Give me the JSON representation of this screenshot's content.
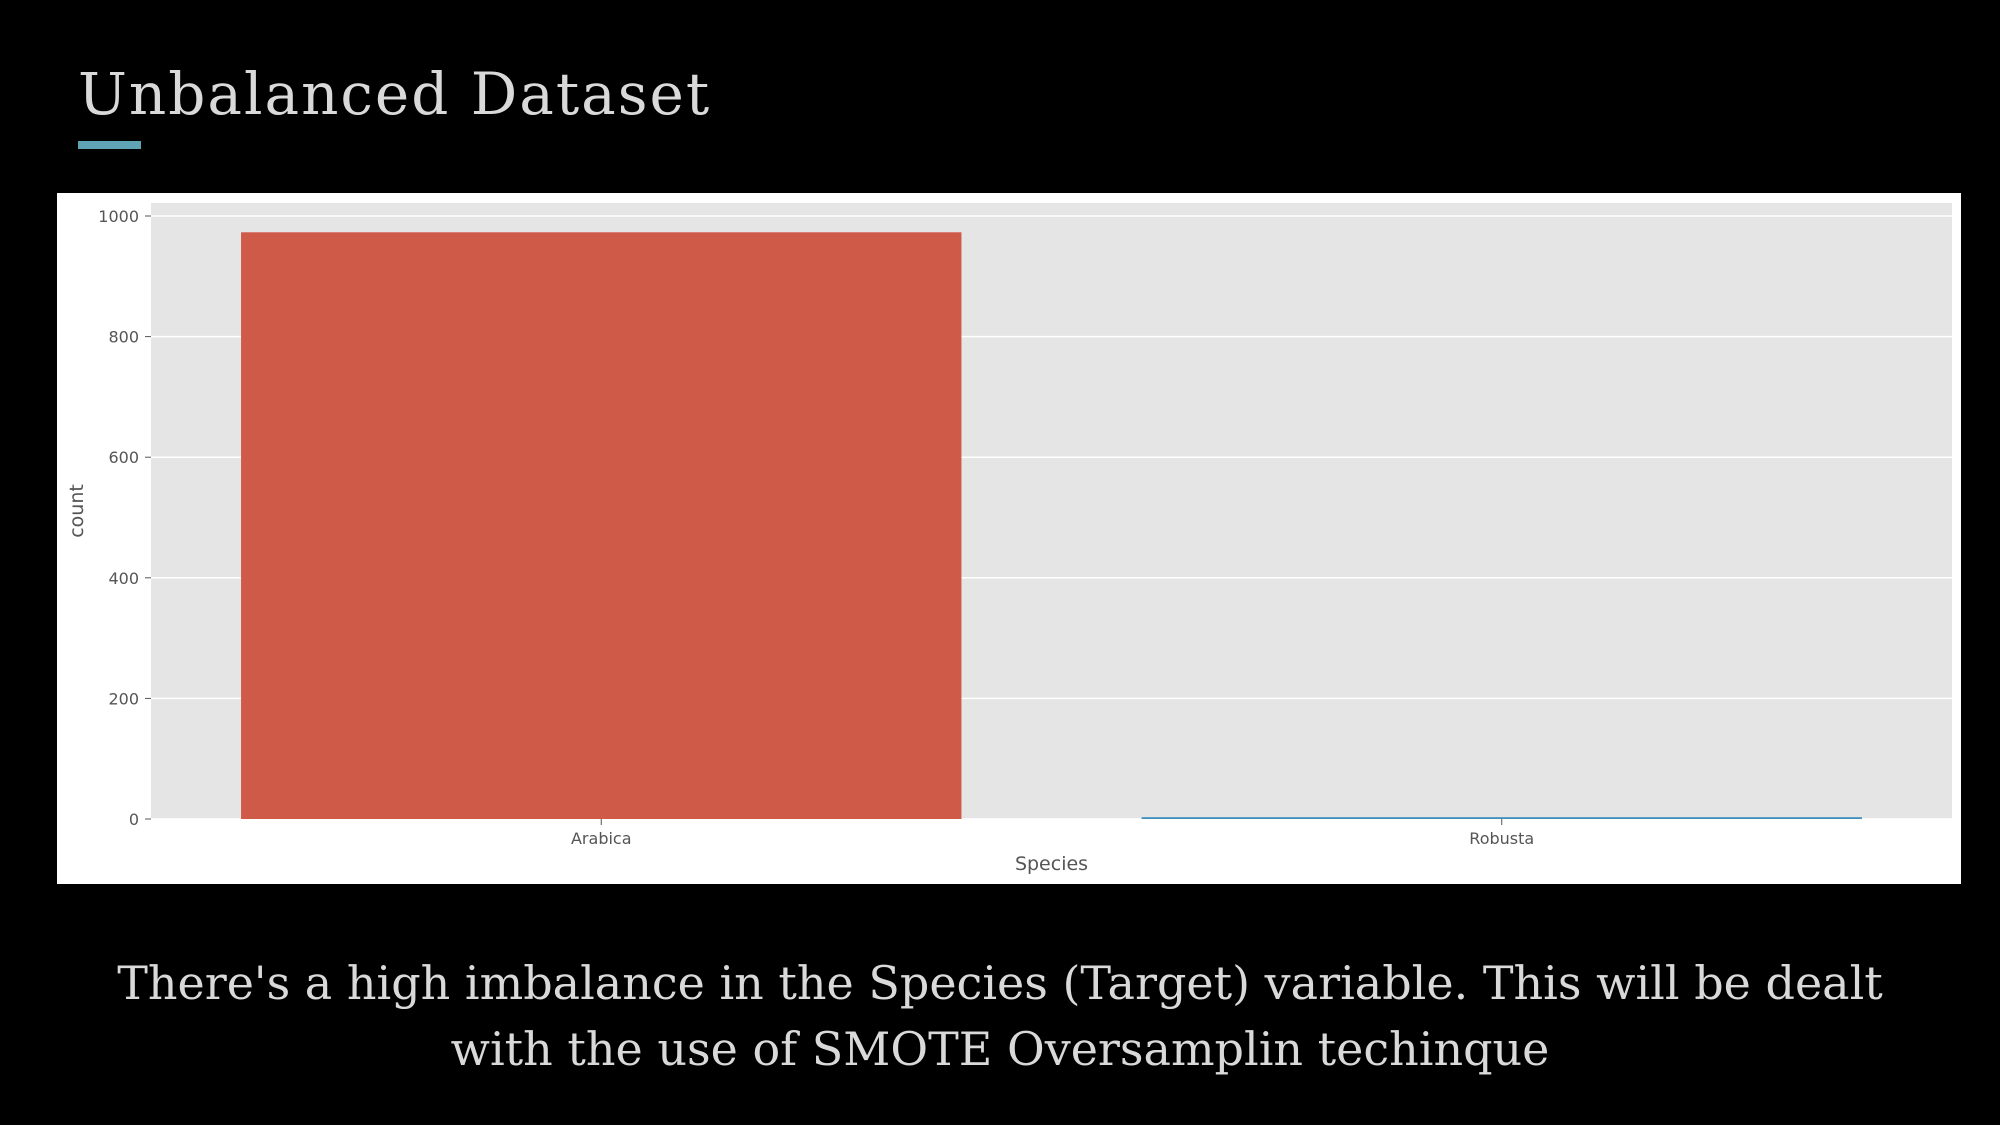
{
  "slide": {
    "title": "Unbalanced Dataset",
    "caption": "There's a high imbalance in the Species (Target) variable. This will be dealt with the use of SMOTE Oversamplin techinque"
  },
  "colors": {
    "background": "#000000",
    "accent": "#5fa3b4",
    "text": "#d9d9d9",
    "plot_background": "#e5e5e5",
    "bars": [
      "#cf5a48",
      "#3f8fbf"
    ]
  },
  "chart_data": {
    "type": "bar",
    "categories": [
      "Arabica",
      "Robusta"
    ],
    "values": [
      973,
      3
    ],
    "xlabel": "Species",
    "ylabel": "count",
    "ylim": [
      0,
      1000
    ],
    "yticks": [
      0,
      200,
      400,
      600,
      800,
      1000
    ],
    "grid": true,
    "style": "ggplot"
  }
}
